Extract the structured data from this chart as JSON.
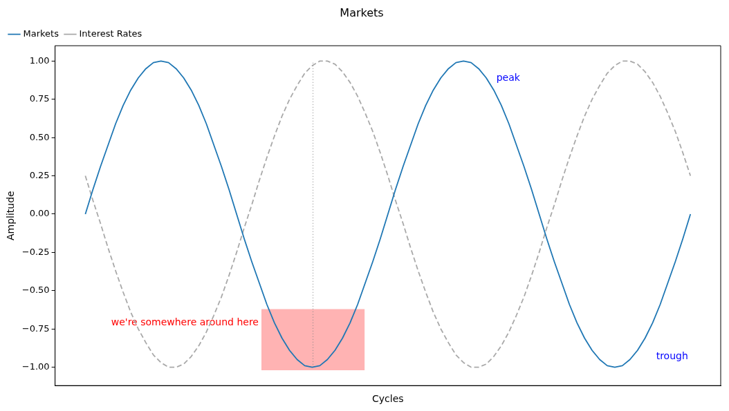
{
  "chart_data": {
    "type": "line",
    "title": "Markets",
    "xlabel": "Cycles",
    "ylabel": "Amplitude",
    "categories": [
      null,
      null,
      null,
      null,
      null,
      null,
      null,
      null,
      null,
      null,
      null,
      null,
      null,
      null,
      null,
      null,
      null,
      null,
      null,
      null,
      null,
      null,
      null,
      null,
      null,
      null,
      null,
      null,
      null,
      null,
      null,
      null,
      null,
      null,
      null,
      null,
      null,
      null,
      null,
      null,
      null,
      null,
      null,
      null,
      null,
      null,
      null,
      null,
      null,
      null,
      null,
      null,
      null,
      null,
      null,
      null,
      null,
      null,
      null,
      null,
      null,
      null,
      null,
      null,
      null,
      null,
      null,
      null,
      null,
      null,
      null,
      null,
      null,
      null,
      null,
      null,
      null,
      null,
      null,
      null,
      null
    ],
    "series": [
      {
        "name": "Markets",
        "color": "#1f77b4",
        "line_style": "solid",
        "values": [
          0,
          0.16,
          0.31,
          0.45,
          0.59,
          0.71,
          0.81,
          0.89,
          0.95,
          0.99,
          1,
          0.99,
          0.95,
          0.89,
          0.81,
          0.71,
          0.59,
          0.45,
          0.31,
          0.16,
          0,
          -0.16,
          -0.31,
          -0.45,
          -0.59,
          -0.71,
          -0.81,
          -0.89,
          -0.95,
          -0.99,
          -1,
          -0.99,
          -0.95,
          -0.89,
          -0.81,
          -0.71,
          -0.59,
          -0.45,
          -0.31,
          -0.16,
          0,
          0.16,
          0.31,
          0.45,
          0.59,
          0.71,
          0.81,
          0.89,
          0.95,
          0.99,
          1,
          0.99,
          0.95,
          0.89,
          0.81,
          0.71,
          0.59,
          0.45,
          0.31,
          0.16,
          0,
          -0.16,
          -0.31,
          -0.45,
          -0.59,
          -0.71,
          -0.81,
          -0.89,
          -0.95,
          -0.99,
          -1,
          -0.99,
          -0.95,
          -0.89,
          -0.81,
          -0.71,
          -0.59,
          -0.45,
          -0.31,
          -0.16,
          0
        ]
      },
      {
        "name": "Interest Rates",
        "color": "#a9a9a9",
        "line_style": "dashed",
        "values": [
          0.25,
          0.09,
          -0.06,
          -0.22,
          -0.37,
          -0.51,
          -0.64,
          -0.75,
          -0.84,
          -0.92,
          -0.97,
          -1.0,
          -1.0,
          -0.98,
          -0.93,
          -0.86,
          -0.77,
          -0.66,
          -0.54,
          -0.4,
          -0.25,
          -0.09,
          0.06,
          0.22,
          0.37,
          0.51,
          0.64,
          0.75,
          0.84,
          0.92,
          0.97,
          1.0,
          1.0,
          0.98,
          0.93,
          0.86,
          0.77,
          0.66,
          0.54,
          0.4,
          0.25,
          0.09,
          -0.06,
          -0.22,
          -0.37,
          -0.51,
          -0.64,
          -0.75,
          -0.84,
          -0.92,
          -0.97,
          -1.0,
          -1.0,
          -0.98,
          -0.93,
          -0.86,
          -0.77,
          -0.66,
          -0.54,
          -0.4,
          -0.25,
          -0.09,
          0.06,
          0.22,
          0.37,
          0.51,
          0.64,
          0.75,
          0.84,
          0.92,
          0.97,
          1.0,
          1.0,
          0.98,
          0.93,
          0.86,
          0.77,
          0.66,
          0.54,
          0.4,
          0.25
        ]
      }
    ],
    "ylim": [
      -1.12,
      1.1
    ],
    "yticks": [
      {
        "value": -1,
        "label": "−1.00"
      },
      {
        "value": -0.75,
        "label": "−0.75"
      },
      {
        "value": -0.5,
        "label": "−0.50"
      },
      {
        "value": -0.25,
        "label": "−0.25"
      },
      {
        "value": 0,
        "label": "0.00"
      },
      {
        "value": 0.25,
        "label": "0.25"
      },
      {
        "value": 0.5,
        "label": "0.50"
      },
      {
        "value": 0.75,
        "label": "0.75"
      },
      {
        "value": 1,
        "label": "1.00"
      }
    ],
    "tick_labels": "y",
    "grid": false,
    "legend": "top left",
    "marker": "none",
    "ref_lines": [
      {
        "axis": "x",
        "color": "#808080",
        "line_style": "dotted"
      }
    ],
    "bands": [
      {
        "axis": "y",
        "from": -1.02,
        "to": -0.62,
        "color": "#ffb3b3",
        "label": "we're somewhere around here"
      }
    ],
    "annotations": [
      "peak",
      "trough"
    ]
  }
}
